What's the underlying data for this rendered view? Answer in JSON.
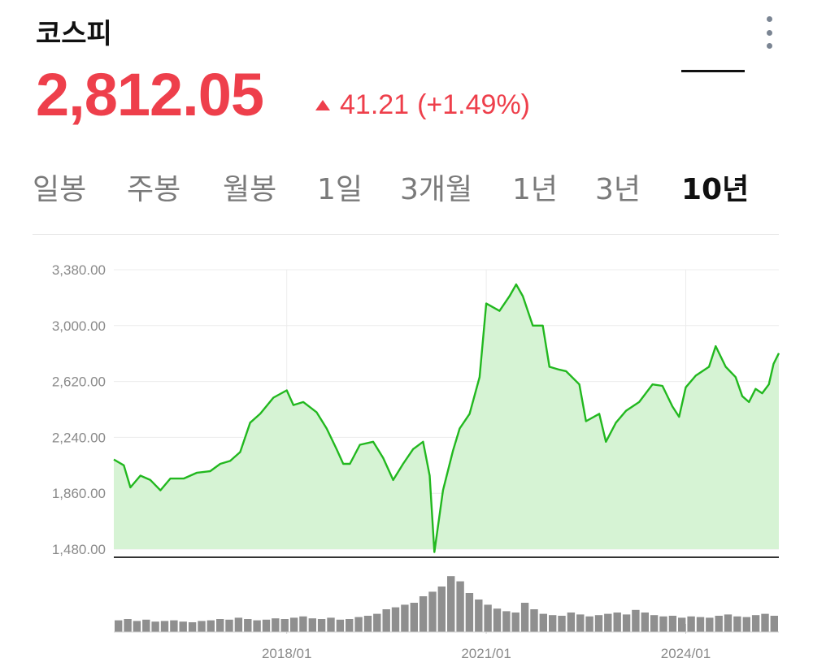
{
  "header": {
    "title": "코스피",
    "price": "2,812.05",
    "change": "41.21",
    "change_pct": "(+1.49%)",
    "more_icon": "more-vertical-icon"
  },
  "tabs": [
    {
      "label": "일봉",
      "active": false
    },
    {
      "label": "주봉",
      "active": false
    },
    {
      "label": "월봉",
      "active": false
    },
    {
      "label": "1일",
      "active": false
    },
    {
      "label": "3개월",
      "active": false
    },
    {
      "label": "1년",
      "active": false
    },
    {
      "label": "3년",
      "active": false
    },
    {
      "label": "10년",
      "active": true
    }
  ],
  "colors": {
    "up": "#ee3f4b",
    "line": "#22b81f",
    "area": "#d6f3d4",
    "volume": "#8f8f8f"
  },
  "chart_data": {
    "type": "area",
    "grid": true,
    "ylim": [
      1480,
      3380
    ],
    "yticks": [
      "3,380.00",
      "3,000.00",
      "2,620.00",
      "2,240.00",
      "1,860.00",
      "1,480.00"
    ],
    "yticks_values": [
      3380,
      3000,
      2620,
      2240,
      1860,
      1480
    ],
    "xticks": [
      {
        "label": "2018/01",
        "t": 2018.0
      },
      {
        "label": "2021/01",
        "t": 2021.0
      },
      {
        "label": "2024/01",
        "t": 2024.0
      }
    ],
    "xlim": [
      2015.4,
      2025.4
    ],
    "series": [
      {
        "points": [
          [
            2015.4,
            2090
          ],
          [
            2015.55,
            2050
          ],
          [
            2015.65,
            1900
          ],
          [
            2015.8,
            1980
          ],
          [
            2015.95,
            1950
          ],
          [
            2016.1,
            1880
          ],
          [
            2016.25,
            1960
          ],
          [
            2016.45,
            1960
          ],
          [
            2016.65,
            2000
          ],
          [
            2016.85,
            2010
          ],
          [
            2017.0,
            2060
          ],
          [
            2017.15,
            2080
          ],
          [
            2017.3,
            2140
          ],
          [
            2017.45,
            2340
          ],
          [
            2017.6,
            2400
          ],
          [
            2017.8,
            2510
          ],
          [
            2018.0,
            2560
          ],
          [
            2018.1,
            2460
          ],
          [
            2018.25,
            2480
          ],
          [
            2018.45,
            2410
          ],
          [
            2018.6,
            2300
          ],
          [
            2018.75,
            2160
          ],
          [
            2018.85,
            2060
          ],
          [
            2018.95,
            2060
          ],
          [
            2019.1,
            2190
          ],
          [
            2019.3,
            2210
          ],
          [
            2019.45,
            2100
          ],
          [
            2019.6,
            1950
          ],
          [
            2019.75,
            2060
          ],
          [
            2019.9,
            2160
          ],
          [
            2020.05,
            2210
          ],
          [
            2020.15,
            1980
          ],
          [
            2020.22,
            1460
          ],
          [
            2020.35,
            1880
          ],
          [
            2020.5,
            2150
          ],
          [
            2020.6,
            2300
          ],
          [
            2020.75,
            2400
          ],
          [
            2020.9,
            2650
          ],
          [
            2021.0,
            3150
          ],
          [
            2021.2,
            3100
          ],
          [
            2021.35,
            3200
          ],
          [
            2021.45,
            3280
          ],
          [
            2021.55,
            3200
          ],
          [
            2021.7,
            3000
          ],
          [
            2021.85,
            3000
          ],
          [
            2021.95,
            2720
          ],
          [
            2022.1,
            2700
          ],
          [
            2022.2,
            2690
          ],
          [
            2022.4,
            2600
          ],
          [
            2022.5,
            2350
          ],
          [
            2022.7,
            2400
          ],
          [
            2022.8,
            2210
          ],
          [
            2022.95,
            2340
          ],
          [
            2023.1,
            2420
          ],
          [
            2023.3,
            2480
          ],
          [
            2023.5,
            2600
          ],
          [
            2023.65,
            2590
          ],
          [
            2023.8,
            2450
          ],
          [
            2023.9,
            2380
          ],
          [
            2024.0,
            2580
          ],
          [
            2024.15,
            2660
          ],
          [
            2024.35,
            2720
          ],
          [
            2024.45,
            2860
          ],
          [
            2024.6,
            2720
          ],
          [
            2024.75,
            2650
          ],
          [
            2024.85,
            2520
          ],
          [
            2024.95,
            2480
          ],
          [
            2025.05,
            2570
          ],
          [
            2025.15,
            2540
          ],
          [
            2025.25,
            2600
          ],
          [
            2025.32,
            2740
          ],
          [
            2025.4,
            2812
          ]
        ]
      }
    ],
    "volume": {
      "values": [
        0.18,
        0.2,
        0.17,
        0.19,
        0.16,
        0.17,
        0.18,
        0.16,
        0.15,
        0.17,
        0.18,
        0.2,
        0.19,
        0.22,
        0.2,
        0.18,
        0.19,
        0.21,
        0.2,
        0.22,
        0.24,
        0.21,
        0.2,
        0.22,
        0.19,
        0.2,
        0.23,
        0.25,
        0.28,
        0.35,
        0.38,
        0.42,
        0.45,
        0.55,
        0.62,
        0.7,
        0.86,
        0.78,
        0.6,
        0.5,
        0.42,
        0.36,
        0.32,
        0.3,
        0.45,
        0.35,
        0.28,
        0.26,
        0.25,
        0.3,
        0.27,
        0.24,
        0.26,
        0.28,
        0.3,
        0.27,
        0.34,
        0.3,
        0.26,
        0.24,
        0.25,
        0.22,
        0.24,
        0.23,
        0.22,
        0.25,
        0.27,
        0.24,
        0.23,
        0.26,
        0.28,
        0.25
      ]
    }
  }
}
